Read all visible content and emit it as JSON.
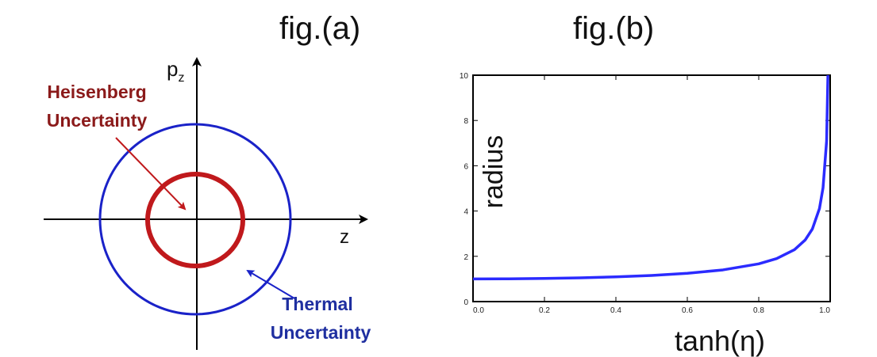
{
  "figure_a": {
    "title": "fig.(a)",
    "axis_x_label": "z",
    "axis_y_label_base": "p",
    "axis_y_label_sub": "z",
    "inner_label_line1": "Heisenberg",
    "inner_label_line2": "Uncertainty",
    "outer_label_line1": "Thermal",
    "outer_label_line2": "Uncertainty",
    "colors": {
      "inner": "#c0191c",
      "outer": "#1a22c8",
      "inner_label": "#8b1a1a",
      "outer_label": "#1f2fa0"
    }
  },
  "figure_b": {
    "title": "fig.(b)",
    "chart_data": {
      "type": "line",
      "xlabel": "tanh(η)",
      "ylabel": "radius",
      "xlim": [
        0,
        1
      ],
      "ylim": [
        0,
        10
      ],
      "x_ticks": [
        "0.0",
        "0.2",
        "0.4",
        "0.6",
        "0.8",
        "1.0"
      ],
      "y_ticks": [
        "0",
        "2",
        "4",
        "6",
        "8",
        "10"
      ],
      "series": [
        {
          "color": "#2b2bff",
          "x": [
            0,
            0.1,
            0.2,
            0.3,
            0.4,
            0.5,
            0.6,
            0.7,
            0.8,
            0.85,
            0.9,
            0.93,
            0.95,
            0.97,
            0.98,
            0.99
          ],
          "y": [
            1.0,
            1.005,
            1.021,
            1.048,
            1.091,
            1.155,
            1.25,
            1.4,
            1.667,
            1.898,
            2.294,
            2.72,
            3.203,
            4.11,
            5.025,
            7.089
          ]
        }
      ]
    }
  }
}
